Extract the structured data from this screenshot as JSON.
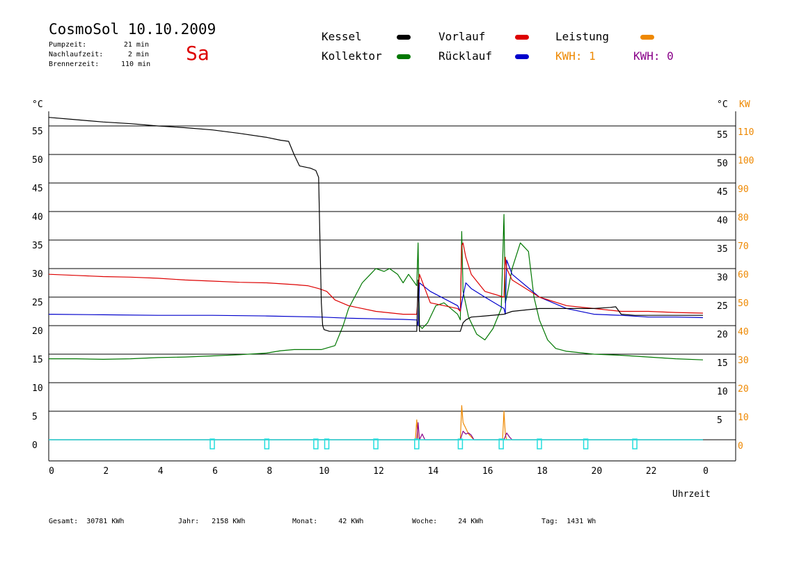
{
  "header": {
    "title": "CosmoSol 10.10.2009",
    "weekday": "Sa",
    "stats": [
      {
        "label": "Pumpzeit:",
        "value": "21 min"
      },
      {
        "label": "Nachlaufzeit:",
        "value": "2 min"
      },
      {
        "label": "Brennerzeit:",
        "value": "110 min"
      }
    ]
  },
  "legend": {
    "kessel": "Kessel",
    "kollektor": "Kollektor",
    "vorlauf": "Vorlauf",
    "ruecklauf": "Rücklauf",
    "leistung": "Leistung",
    "kwh1": "KWH: 1",
    "kwh2": "KWH: 0"
  },
  "colors": {
    "kessel": "#000000",
    "kollektor": "#007700",
    "vorlauf": "#dd0000",
    "ruecklauf": "#0000cc",
    "leistung": "#ee8800",
    "kwh2": "#880088",
    "pump": "#22dddd"
  },
  "footer": [
    {
      "label": "Gesamt:",
      "value": "30781 KWh"
    },
    {
      "label": "Jahr:",
      "value": "2158 KWh"
    },
    {
      "label": "Monat:",
      "value": "42 KWh"
    },
    {
      "label": "Woche:",
      "value": "24 KWh"
    },
    {
      "label": "Tag:",
      "value": "1431 Wh"
    }
  ],
  "chart_data": {
    "type": "line",
    "xlabel": "Uhrzeit",
    "ylabel_left": "°C",
    "ylabel_right": "°C",
    "ylabel_right2": "KW",
    "xlim": [
      0,
      24
    ],
    "ylim": [
      -7.5,
      57
    ],
    "x_ticks": [
      "0",
      "2",
      "4",
      "6",
      "8",
      "10",
      "12",
      "14",
      "16",
      "18",
      "20",
      "22",
      "0"
    ],
    "y_ticks": [
      0,
      5,
      10,
      15,
      20,
      25,
      30,
      35,
      40,
      45,
      50,
      55
    ],
    "kw_ticks": [
      0,
      10,
      20,
      30,
      40,
      50,
      60,
      70,
      80,
      90,
      100,
      110
    ],
    "grid": true,
    "series": [
      {
        "name": "Kessel",
        "key": "kessel",
        "x": [
          0,
          1,
          2,
          3,
          4,
          5,
          6,
          7,
          8,
          8.5,
          8.8,
          9.0,
          9.2,
          9.6,
          9.8,
          9.9,
          9.95,
          10.0,
          10.05,
          10.1,
          10.3,
          11,
          12,
          13,
          13.5,
          13.55,
          13.6,
          14,
          15,
          15.1,
          15.2,
          15.3,
          15.5,
          16,
          16.7,
          17,
          18,
          19,
          20,
          20.6,
          20.8,
          21,
          21.5,
          22,
          23,
          24
        ],
        "y": [
          56.5,
          56.1,
          55.7,
          55.4,
          55.0,
          54.7,
          54.3,
          53.7,
          53.0,
          52.5,
          52.3,
          50.0,
          48.0,
          47.6,
          47.2,
          46.0,
          35.0,
          24.0,
          20.0,
          19.3,
          19.0,
          19.0,
          19.0,
          19.0,
          19.0,
          28.0,
          19.0,
          19.0,
          19.0,
          19.0,
          20.5,
          21.0,
          21.5,
          21.7,
          22.0,
          22.5,
          23.0,
          23.0,
          23.0,
          23.2,
          23.3,
          22.0,
          21.8,
          21.8,
          21.8,
          21.8
        ]
      },
      {
        "name": "Vorlauf",
        "key": "vorlauf",
        "x": [
          0,
          1,
          2,
          3,
          4,
          5,
          6,
          7,
          8,
          9,
          9.5,
          9.9,
          10.2,
          10.5,
          11,
          12,
          13,
          13.5,
          13.6,
          14,
          15,
          15.1,
          15.15,
          15.2,
          15.3,
          15.5,
          16,
          16.7,
          16.75,
          16.8,
          17,
          18,
          19,
          20,
          21,
          22,
          23,
          24
        ],
        "y": [
          29.0,
          28.8,
          28.6,
          28.5,
          28.3,
          28.0,
          27.8,
          27.6,
          27.5,
          27.2,
          27.0,
          26.5,
          26.0,
          24.5,
          23.5,
          22.5,
          22.0,
          22.0,
          29.0,
          24.0,
          23.0,
          22.5,
          34.0,
          34.5,
          32.0,
          29.0,
          26.0,
          25.0,
          32.0,
          30.0,
          28.0,
          25.0,
          23.5,
          23.0,
          22.5,
          22.5,
          22.3,
          22.2
        ]
      },
      {
        "name": "Rücklauf",
        "key": "ruecklauf",
        "x": [
          0,
          2,
          4,
          6,
          8,
          10,
          11,
          12,
          13,
          13.5,
          13.55,
          13.6,
          14,
          15,
          15.1,
          15.15,
          15.3,
          15.5,
          16,
          16.7,
          16.75,
          16.8,
          17,
          18,
          19,
          20,
          21,
          22,
          23,
          24
        ],
        "y": [
          22.0,
          21.9,
          21.8,
          21.8,
          21.7,
          21.5,
          21.3,
          21.2,
          21.1,
          21.0,
          20.0,
          27.5,
          26.0,
          23.5,
          22.5,
          24.0,
          27.5,
          26.5,
          25.0,
          23.0,
          22.0,
          31.5,
          29.0,
          25.0,
          23.0,
          22.0,
          21.8,
          21.5,
          21.5,
          21.4
        ]
      },
      {
        "name": "Kollektor",
        "key": "kollektor",
        "x": [
          0,
          1,
          2,
          3,
          4,
          5,
          6,
          7,
          8,
          8.5,
          9,
          10,
          10.5,
          10.8,
          11,
          11.5,
          11.8,
          12,
          12.3,
          12.5,
          12.8,
          13.0,
          13.2,
          13.5,
          13.55,
          13.6,
          13.7,
          13.9,
          14.2,
          14.5,
          15.0,
          15.1,
          15.15,
          15.2,
          15.4,
          15.7,
          16.0,
          16.3,
          16.6,
          16.7,
          16.75,
          16.8,
          17.0,
          17.3,
          17.6,
          17.8,
          18.0,
          18.3,
          18.6,
          19,
          20,
          21,
          22,
          23,
          24
        ],
        "y": [
          14.2,
          14.2,
          14.1,
          14.2,
          14.4,
          14.5,
          14.7,
          14.9,
          15.2,
          15.6,
          15.8,
          15.8,
          16.5,
          20.0,
          23.0,
          27.5,
          29.0,
          30.0,
          29.5,
          30.0,
          29.0,
          27.5,
          29.0,
          27.0,
          34.5,
          20.0,
          19.5,
          20.5,
          23.5,
          24.0,
          22.0,
          21.0,
          36.5,
          26.0,
          21.5,
          18.5,
          17.5,
          19.5,
          23.0,
          39.5,
          24.0,
          25.0,
          30.0,
          34.5,
          33.0,
          25.0,
          21.0,
          17.5,
          16.0,
          15.5,
          15.0,
          14.8,
          14.5,
          14.2,
          14.0
        ]
      },
      {
        "name": "Leistung",
        "key": "leistung",
        "x": [
          0,
          13.45,
          13.5,
          13.55,
          13.6,
          15.1,
          15.15,
          15.2,
          15.3,
          15.4,
          15.5,
          15.6,
          16.65,
          16.7,
          16.75,
          16.8,
          24
        ],
        "y": [
          0,
          0,
          3.5,
          0,
          0,
          0,
          6.0,
          3.0,
          2.0,
          1.0,
          0.5,
          0,
          0,
          5.0,
          1.0,
          0,
          0
        ]
      },
      {
        "name": "KWH: 0",
        "key": "kwh2",
        "x": [
          0,
          13.5,
          13.55,
          13.6,
          13.7,
          13.8,
          15.1,
          15.2,
          15.3,
          15.4,
          15.5,
          15.6,
          16.7,
          16.8,
          16.9,
          17.0,
          24
        ],
        "y": [
          0,
          0,
          3.0,
          0,
          1.0,
          0,
          0,
          1.5,
          1.0,
          1.2,
          0.8,
          0,
          0,
          1.2,
          0.5,
          0,
          0
        ]
      }
    ],
    "pump_markers": [
      6.0,
      8.0,
      9.8,
      10.2,
      12.0,
      13.5,
      15.1,
      16.6,
      18.0,
      19.7,
      21.5
    ]
  }
}
